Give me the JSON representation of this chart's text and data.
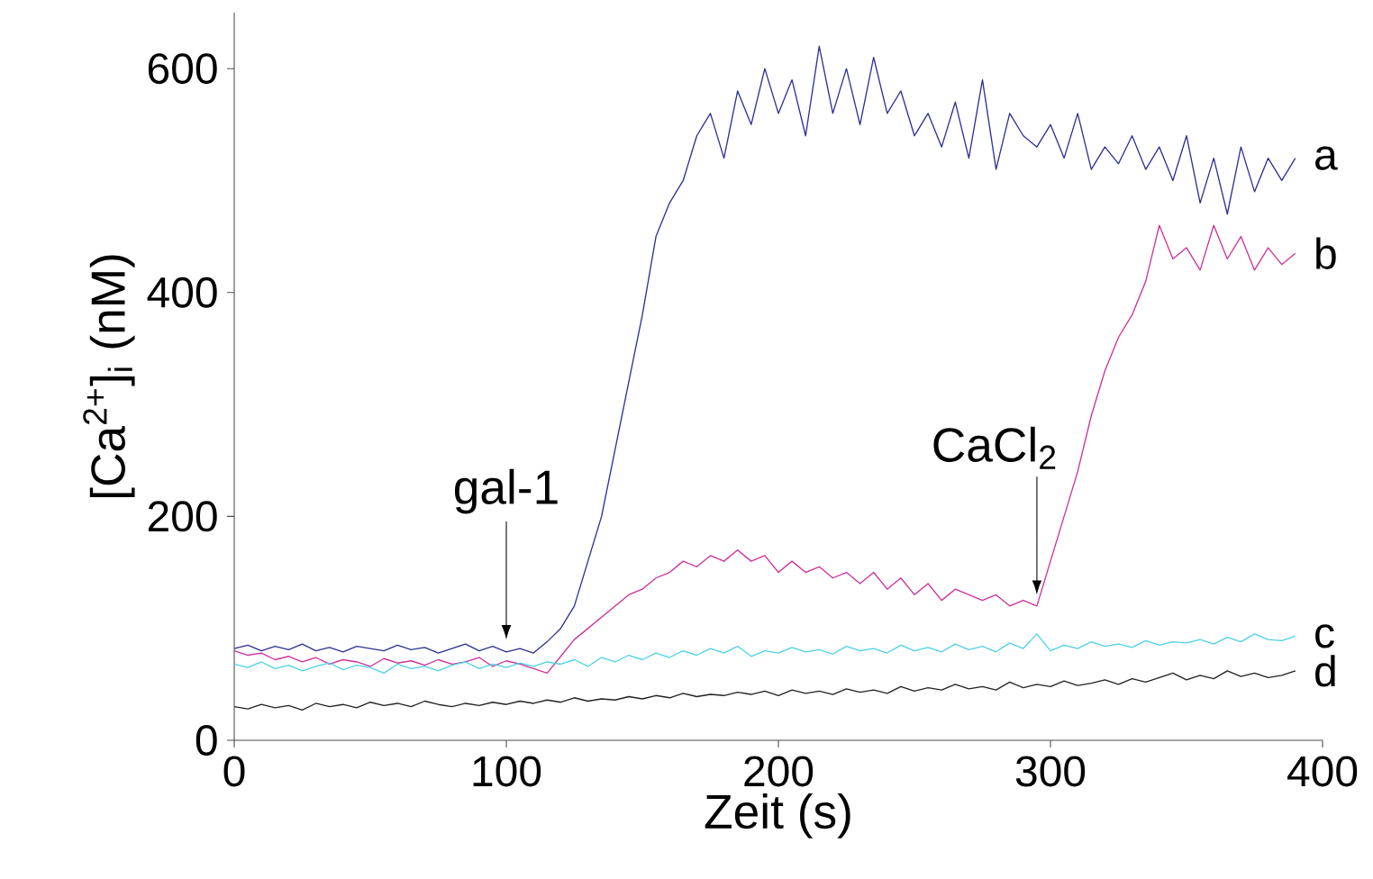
{
  "chart_data": {
    "type": "line",
    "xlabel": "Zeit  (s)",
    "ylabel": "[Ca$^{2+}$]$_{i}$ (nM)",
    "xlim": [
      0,
      400
    ],
    "ylim": [
      0,
      650
    ],
    "xticks": [
      0,
      100,
      200,
      300,
      400
    ],
    "yticks": [
      0,
      200,
      400,
      600
    ],
    "grid": false,
    "marker": "none",
    "line_style": "solid",
    "x": [
      0,
      5,
      10,
      15,
      20,
      25,
      30,
      35,
      40,
      45,
      50,
      55,
      60,
      65,
      70,
      75,
      80,
      85,
      90,
      95,
      100,
      105,
      110,
      115,
      120,
      125,
      130,
      135,
      140,
      145,
      150,
      155,
      160,
      165,
      170,
      175,
      180,
      185,
      190,
      195,
      200,
      205,
      210,
      215,
      220,
      225,
      230,
      235,
      240,
      245,
      250,
      255,
      260,
      265,
      270,
      275,
      280,
      285,
      290,
      295,
      300,
      305,
      310,
      315,
      320,
      325,
      330,
      335,
      340,
      345,
      350,
      355,
      360,
      365,
      370,
      375,
      380,
      385,
      390
    ],
    "series": [
      {
        "name": "a",
        "color": "#2e3192",
        "values": [
          82,
          85,
          80,
          84,
          81,
          86,
          80,
          83,
          79,
          84,
          82,
          80,
          85,
          81,
          83,
          78,
          82,
          86,
          80,
          84,
          79,
          82,
          78,
          88,
          100,
          120,
          160,
          200,
          260,
          320,
          380,
          450,
          480,
          500,
          540,
          560,
          520,
          580,
          550,
          600,
          560,
          590,
          540,
          620,
          560,
          600,
          550,
          610,
          560,
          580,
          540,
          560,
          530,
          570,
          520,
          590,
          510,
          560,
          540,
          530,
          550,
          520,
          560,
          510,
          530,
          515,
          540,
          510,
          530,
          500,
          540,
          480,
          520,
          470,
          530,
          490,
          520,
          500,
          520
        ]
      },
      {
        "name": "b",
        "color": "#cc3399",
        "values": [
          80,
          76,
          78,
          72,
          75,
          70,
          74,
          68,
          72,
          70,
          66,
          73,
          69,
          71,
          67,
          72,
          68,
          70,
          74,
          66,
          71,
          68,
          64,
          60,
          75,
          90,
          100,
          110,
          120,
          130,
          135,
          145,
          150,
          160,
          155,
          165,
          160,
          170,
          160,
          165,
          150,
          160,
          150,
          155,
          145,
          150,
          140,
          150,
          135,
          145,
          130,
          140,
          125,
          135,
          130,
          125,
          130,
          120,
          125,
          120,
          160,
          200,
          240,
          290,
          330,
          360,
          380,
          410,
          460,
          430,
          440,
          420,
          460,
          430,
          450,
          420,
          440,
          425,
          435
        ]
      },
      {
        "name": "c",
        "color": "#4dd2e6",
        "values": [
          68,
          65,
          70,
          64,
          67,
          62,
          66,
          69,
          63,
          67,
          65,
          60,
          68,
          64,
          66,
          62,
          67,
          70,
          64,
          68,
          65,
          69,
          66,
          70,
          68,
          72,
          66,
          74,
          70,
          76,
          72,
          78,
          74,
          80,
          76,
          82,
          78,
          84,
          75,
          80,
          78,
          83,
          79,
          81,
          77,
          84,
          80,
          82,
          78,
          85,
          80,
          83,
          79,
          86,
          81,
          84,
          79,
          87,
          82,
          95,
          80,
          85,
          82,
          88,
          84,
          86,
          83,
          89,
          85,
          88,
          87,
          90,
          86,
          92,
          88,
          95,
          90,
          89,
          93
        ]
      },
      {
        "name": "d",
        "color": "#222222",
        "values": [
          30,
          28,
          32,
          29,
          31,
          27,
          33,
          30,
          32,
          29,
          34,
          31,
          33,
          30,
          35,
          32,
          30,
          33,
          31,
          34,
          32,
          35,
          33,
          36,
          34,
          38,
          35,
          37,
          36,
          39,
          37,
          40,
          38,
          42,
          39,
          41,
          40,
          43,
          41,
          44,
          40,
          45,
          42,
          44,
          41,
          46,
          43,
          45,
          42,
          48,
          44,
          47,
          45,
          50,
          46,
          48,
          45,
          52,
          47,
          50,
          48,
          53,
          49,
          51,
          54,
          50,
          55,
          52,
          56,
          60,
          54,
          58,
          55,
          62,
          57,
          60,
          56,
          58,
          62
        ]
      }
    ],
    "annotations": [
      {
        "text": "gal-1",
        "x": 100,
        "y": 85
      },
      {
        "text": "CaCl$_{2}$",
        "x": 295,
        "y": 125
      }
    ]
  }
}
